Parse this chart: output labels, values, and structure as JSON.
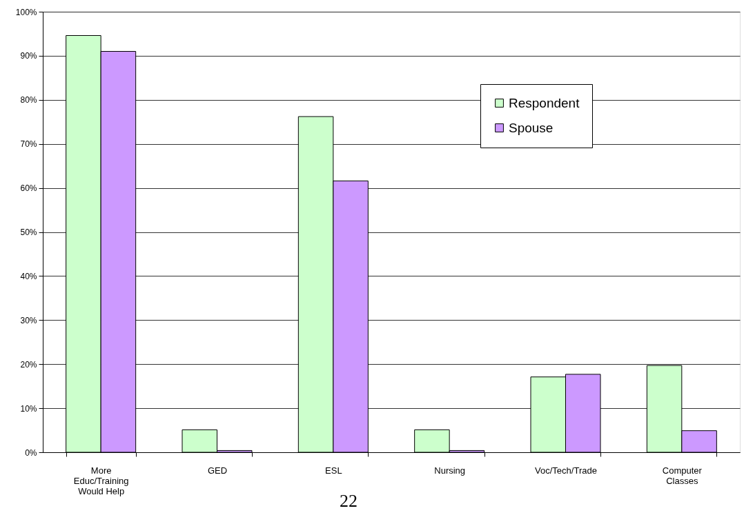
{
  "chart_data": {
    "type": "bar",
    "categories": [
      "More Educ/Training Would Help",
      "GED",
      "ESL",
      "Nursing",
      "Voc/Tech/Trade",
      "Computer Classes"
    ],
    "series": [
      {
        "name": "Respondent",
        "color": "#ccffcc",
        "values": [
          94.6,
          5.1,
          76.2,
          5.1,
          17.1,
          19.7
        ]
      },
      {
        "name": "Spouse",
        "color": "#cc99ff",
        "values": [
          91.0,
          0.4,
          61.6,
          0.4,
          17.7,
          4.9
        ]
      }
    ],
    "ylim": [
      0,
      100
    ],
    "yticks": [
      {
        "value": 0,
        "label": "0%"
      },
      {
        "value": 10,
        "label": "10%"
      },
      {
        "value": 20,
        "label": "20%"
      },
      {
        "value": 30,
        "label": "30%"
      },
      {
        "value": 40,
        "label": "40%"
      },
      {
        "value": 50,
        "label": "50%"
      },
      {
        "value": 60,
        "label": "60%"
      },
      {
        "value": 70,
        "label": "70%"
      },
      {
        "value": 80,
        "label": "80%"
      },
      {
        "value": 90,
        "label": "90%"
      },
      {
        "value": 100,
        "label": "100%"
      }
    ],
    "grid": "y",
    "legend": "top right",
    "annotations": [
      "22"
    ]
  }
}
